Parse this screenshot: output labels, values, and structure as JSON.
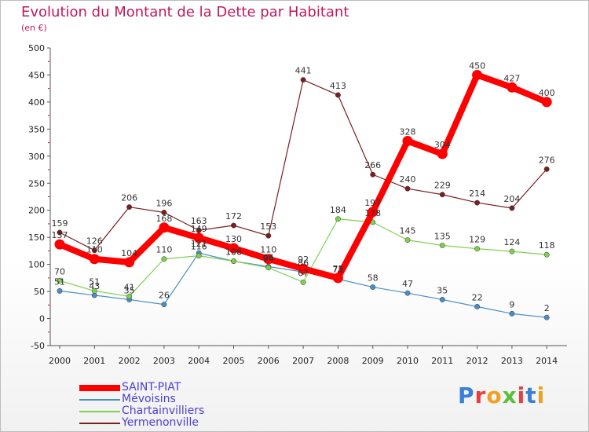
{
  "title": "Evolution du Montant de la Dette par Habitant",
  "unit": "(en €)",
  "brand": "Proxiti",
  "colors": {
    "title": "#c2185b",
    "axis": "#555555",
    "grid_marks": "#cc0000",
    "legend_text": "#4a3fd0"
  },
  "chart_data": {
    "type": "line",
    "title": "Evolution du Montant de la Dette par Habitant",
    "ylabel": "(en €)",
    "xlabel": "",
    "x": [
      "2000",
      "2001",
      "2002",
      "2003",
      "2004",
      "2005",
      "2006",
      "2007",
      "2008",
      "2009",
      "2010",
      "2011",
      "2012",
      "2013",
      "2014"
    ],
    "ylim": [
      -50,
      500
    ],
    "yticks": [
      -50,
      0,
      50,
      100,
      150,
      200,
      250,
      300,
      350,
      400,
      450,
      500
    ],
    "legend_position": "bottom-left",
    "series": [
      {
        "name": "SAINT-PIAT",
        "color": "#ff0000",
        "values": [
          137,
          110,
          104,
          168,
          149,
          130,
          110,
          92,
          75,
          197,
          328,
          304,
          450,
          427,
          400
        ],
        "labels": [
          "137",
          "110",
          "104",
          "168",
          "149",
          "130",
          "110",
          "92",
          "75",
          "197",
          "328",
          "304",
          "450",
          "427",
          "400"
        ]
      },
      {
        "name": "Mévoisins",
        "color": "#4a8ec8",
        "values": [
          51,
          43,
          35,
          26,
          121,
          106,
          96,
          86,
          73,
          58,
          47,
          35,
          22,
          9,
          2
        ],
        "labels": [
          "51",
          "43",
          "35",
          "26",
          "121",
          "106",
          "96",
          "86",
          "73",
          "58",
          "47",
          "35",
          "22",
          "9",
          "2"
        ]
      },
      {
        "name": "Chartainvilliers",
        "color": "#80d050",
        "values": [
          70,
          51,
          41,
          110,
          116,
          106,
          94,
          67,
          184,
          178,
          145,
          135,
          129,
          124,
          118
        ],
        "labels": [
          "70",
          "51",
          "41",
          "110",
          "116",
          "106",
          "94",
          "67",
          "184",
          "178",
          "145",
          "135",
          "129",
          "124",
          "118"
        ]
      },
      {
        "name": "Yermenonville",
        "color": "#7a1f1f",
        "values": [
          159,
          126,
          206,
          196,
          163,
          172,
          153,
          441,
          413,
          266,
          240,
          229,
          214,
          204,
          276
        ],
        "labels": [
          "159",
          "126",
          "206",
          "196",
          "163",
          "172",
          "153",
          "441",
          "413",
          "266",
          "240",
          "229",
          "214",
          "204",
          "276"
        ]
      }
    ]
  },
  "legend": [
    {
      "label": "SAINT-PIAT",
      "color": "#ff0000"
    },
    {
      "label": "Mévoisins",
      "color": "#4a8ec8"
    },
    {
      "label": "Chartainvilliers",
      "color": "#80d050"
    },
    {
      "label": "Yermenonville",
      "color": "#7a1f1f"
    }
  ]
}
